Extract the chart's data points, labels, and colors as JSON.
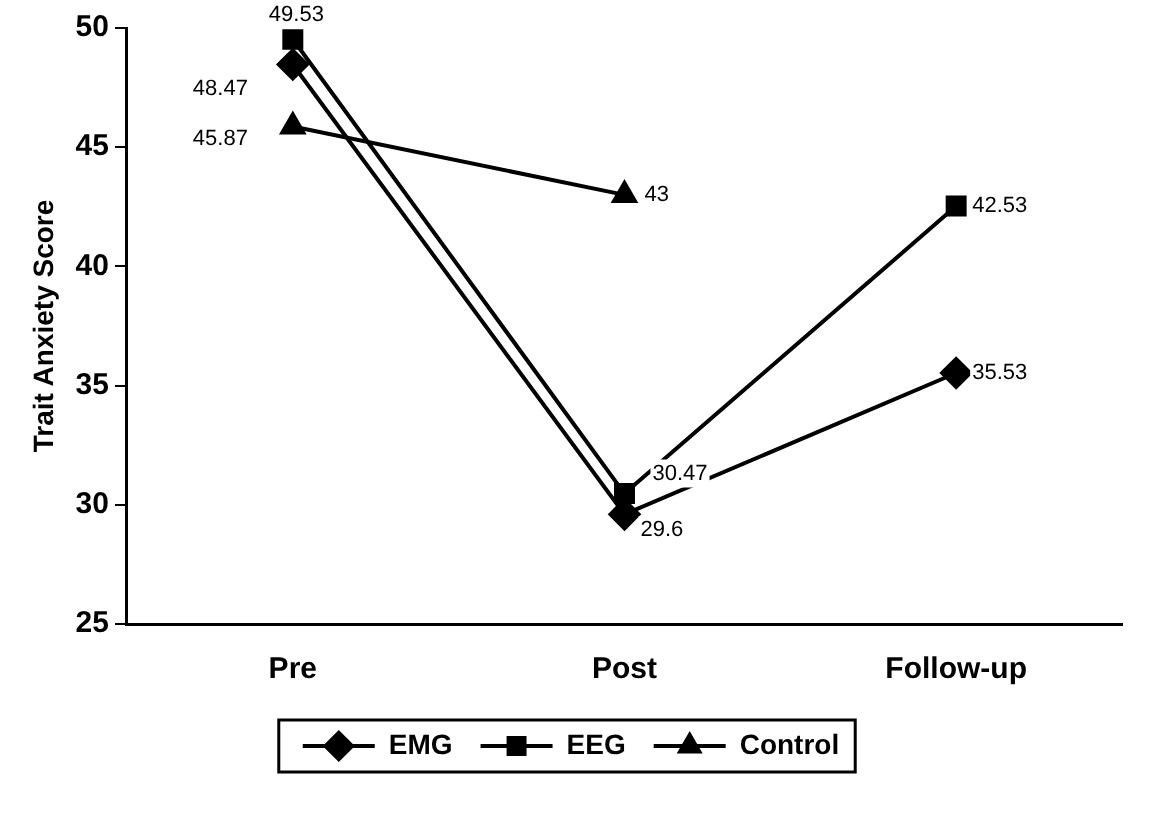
{
  "chart_data": {
    "type": "line",
    "ylabel": "Trait Anxiety Score",
    "categories": [
      "Pre",
      "Post",
      "Follow-up"
    ],
    "series": [
      {
        "name": "EMG",
        "color": "#000000",
        "marker": "diamond",
        "values": [
          48.47,
          29.6,
          35.53
        ]
      },
      {
        "name": "EEG",
        "color": "#000000",
        "marker": "square",
        "values": [
          49.53,
          30.47,
          42.53
        ]
      },
      {
        "name": "Control",
        "color": "#000000",
        "marker": "triangle",
        "values": [
          45.87,
          43,
          null
        ]
      }
    ],
    "ylim": [
      25,
      50
    ],
    "yticks": [
      25,
      30,
      35,
      40,
      45,
      50
    ],
    "grid": false,
    "legend": "bottom",
    "data_labels": true,
    "line_style": "solid"
  }
}
